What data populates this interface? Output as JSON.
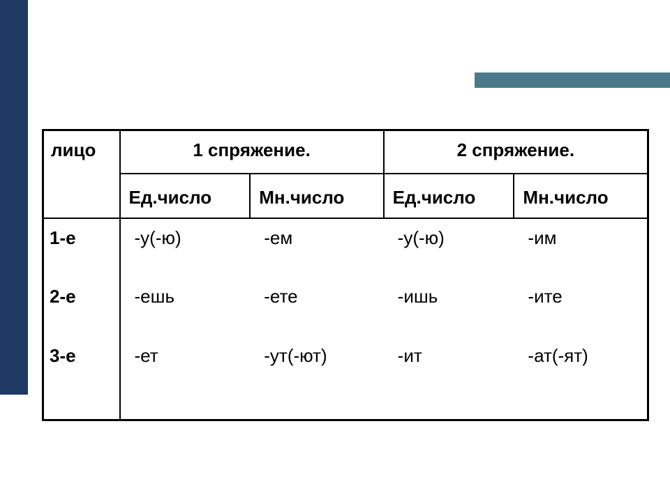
{
  "layout": {
    "left_bar_color": "#1f3864",
    "accent_bar_color": "#4a7a8c",
    "background": "#ffffff"
  },
  "table": {
    "header": {
      "col0": "лицо",
      "conj1": "1 спряжение.",
      "conj2": "2 спряжение."
    },
    "subheader": {
      "sg": "Ед.число",
      "pl": "Мн.число"
    },
    "rows": [
      {
        "person": "1-е",
        "c1_sg": "-у(-ю)",
        "c1_pl": "-ем",
        "c2_sg": "-у(-ю)",
        "c2_pl": "-им"
      },
      {
        "person": "2-е",
        "c1_sg": "-ешь",
        "c1_pl": "-ете",
        "c2_sg": "-ишь",
        "c2_pl": "-ите"
      },
      {
        "person": "3-е",
        "c1_sg": "-ет",
        "c1_pl": "-ут(-ют)",
        "c2_sg": "-ит",
        "c2_pl": "-ат(-ят)"
      }
    ]
  }
}
